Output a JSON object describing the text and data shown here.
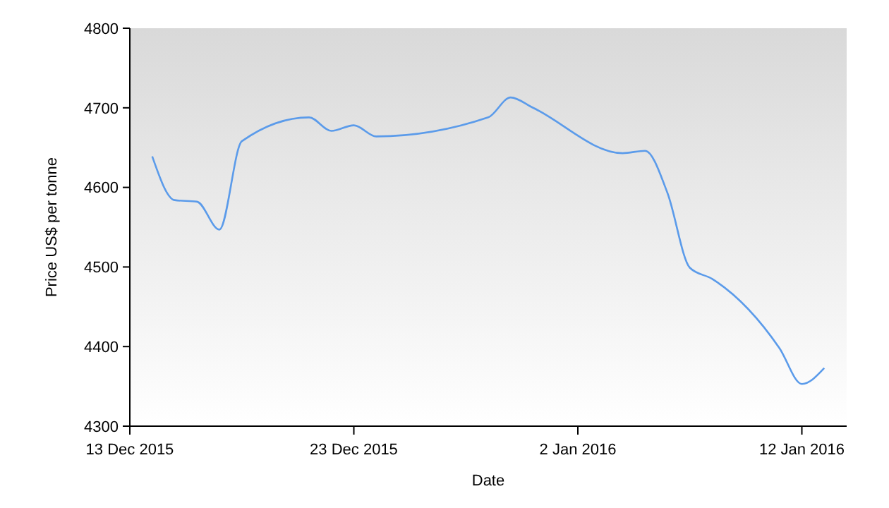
{
  "chart_data": {
    "type": "line",
    "xlabel": "Date",
    "ylabel": "Price US$ per tonne",
    "x": [
      "2015-12-14",
      "2015-12-15",
      "2015-12-16",
      "2015-12-17",
      "2015-12-18",
      "2015-12-21",
      "2015-12-22",
      "2015-12-23",
      "2015-12-24",
      "2015-12-29",
      "2015-12-30",
      "2015-12-31",
      "2016-01-04",
      "2016-01-05",
      "2016-01-06",
      "2016-01-07",
      "2016-01-08",
      "2016-01-11",
      "2016-01-12",
      "2016-01-13"
    ],
    "series": [
      {
        "color": "#5b9bea",
        "values": [
          4639,
          4584,
          4582,
          4547,
          4658,
          4688,
          4671,
          4678,
          4664,
          4688,
          4713,
          4700,
          4643,
          4646,
          4593,
          4499,
          4485,
          4398,
          4353,
          4373
        ]
      }
    ],
    "xlim": [
      "2015-12-13",
      "2016-01-14"
    ],
    "xticks": [
      {
        "value": "2015-12-13",
        "label": "13 Dec 2015"
      },
      {
        "value": "2015-12-23",
        "label": "23 Dec 2015"
      },
      {
        "value": "2016-01-02",
        "label": "2 Jan 2016"
      },
      {
        "value": "2016-01-12",
        "label": "12 Jan 2016"
      }
    ],
    "ylim": [
      4300,
      4800
    ],
    "yticks": [
      4300,
      4400,
      4500,
      4600,
      4700,
      4800
    ],
    "grid": false,
    "marker": "none",
    "line_style": "solid"
  }
}
